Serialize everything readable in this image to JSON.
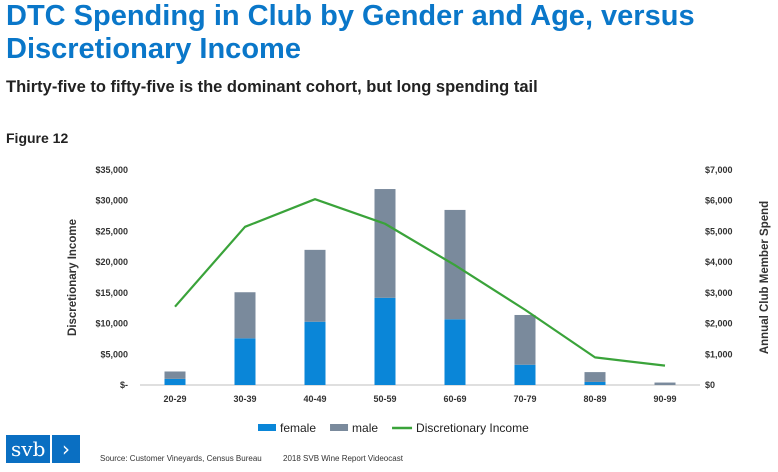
{
  "header": {
    "title": "DTC Spending in Club by Gender and Age, versus Discretionary Income",
    "subtitle": "Thirty-five to fifty-five is the dominant cohort, but long spending tail",
    "figure_label": "Figure 12"
  },
  "chart_data": {
    "type": "bar",
    "stacked": true,
    "categories": [
      "20-29",
      "30-39",
      "40-49",
      "50-59",
      "60-69",
      "70-79",
      "80-89",
      "90-99"
    ],
    "series": [
      {
        "name": "female",
        "type": "bar",
        "axis": "left",
        "color": "#0a86d8",
        "values": [
          1000,
          7600,
          10300,
          14200,
          10700,
          3300,
          500,
          0
        ]
      },
      {
        "name": "male",
        "type": "bar",
        "axis": "left",
        "color": "#7a8a9c",
        "values": [
          1200,
          7500,
          11700,
          17700,
          17800,
          8100,
          1600,
          400
        ]
      },
      {
        "name": "Discretionary Income",
        "type": "line",
        "axis": "right",
        "color": "#3aa33a",
        "values": [
          2550,
          5150,
          6050,
          5250,
          3900,
          2450,
          900,
          630
        ]
      }
    ],
    "y_left": {
      "label": "Discretionary Income",
      "range": [
        0,
        35000
      ],
      "ticks": [
        "$-",
        "$5,000",
        "$10,000",
        "$15,000",
        "$20,000",
        "$25,000",
        "$30,000",
        "$35,000"
      ]
    },
    "y_right": {
      "label": "Annual Club Member Spend",
      "range": [
        0,
        7000
      ],
      "ticks": [
        "$0",
        "$1,000",
        "$2,000",
        "$3,000",
        "$4,000",
        "$5,000",
        "$6,000",
        "$7,000"
      ]
    },
    "grid": false,
    "legend_position": "bottom"
  },
  "footer": {
    "logo_text": "svb",
    "logo_chevron": "›",
    "source": "Source: Customer Vineyards, Census Bureau",
    "event": "2018 SVB Wine Report Videocast"
  }
}
